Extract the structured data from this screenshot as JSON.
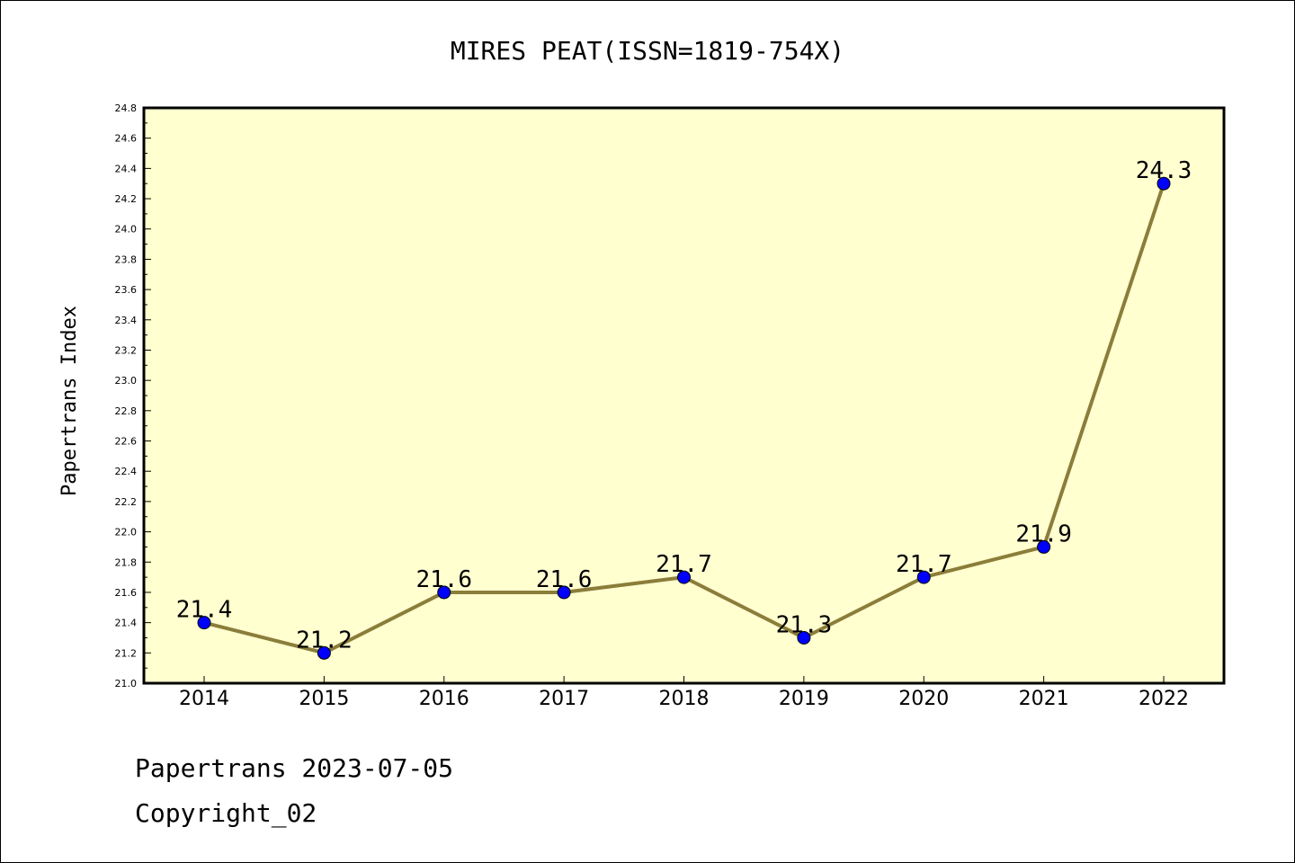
{
  "chart_data": {
    "type": "line",
    "title": "MIRES PEAT(ISSN=1819-754X)",
    "xlabel": "",
    "ylabel": "Papertrans Index",
    "categories": [
      "2014",
      "2015",
      "2016",
      "2017",
      "2018",
      "2019",
      "2020",
      "2021",
      "2022"
    ],
    "series": [
      {
        "values": [
          21.4,
          21.2,
          21.6,
          21.6,
          21.7,
          21.3,
          21.7,
          21.9,
          24.3
        ],
        "data_labels": [
          "21.4",
          "21.2",
          "21.6",
          "21.6",
          "21.7",
          "21.3",
          "21.7",
          "21.9",
          "24.3"
        ]
      }
    ],
    "ylim": [
      21.0,
      24.8
    ],
    "yticks": [
      "21.0",
      "21.2",
      "21.4",
      "21.6",
      "21.8",
      "22.0",
      "22.2",
      "22.4",
      "22.6",
      "22.8",
      "23.0",
      "23.2",
      "23.4",
      "23.6",
      "23.8",
      "24.0",
      "24.2",
      "24.4",
      "24.6",
      "24.8"
    ],
    "grid": false,
    "legend": "none",
    "colors": {
      "plot_background": "#ffffd0",
      "line": "#8b7d3a",
      "marker": "#0000ff"
    }
  },
  "footer": {
    "line1": "Papertrans 2023-07-05",
    "line2": "Copyright_02"
  }
}
